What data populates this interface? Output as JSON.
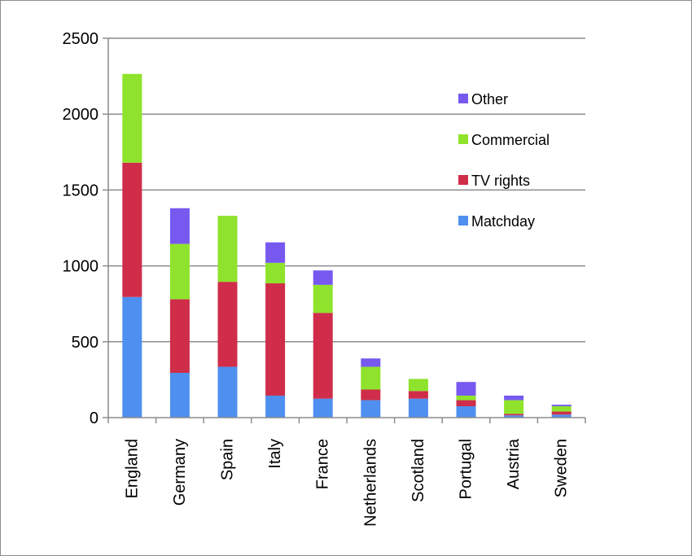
{
  "chart_data": {
    "type": "bar",
    "stacked": true,
    "title": "",
    "xlabel": "",
    "ylabel": "",
    "ylim": [
      0,
      2500
    ],
    "yticks": [
      0,
      500,
      1000,
      1500,
      2000,
      2500
    ],
    "grid": true,
    "legend_position": "right",
    "categories": [
      "England",
      "Germany",
      "Spain",
      "Italy",
      "France",
      "Netherlands",
      "Scotland",
      "Portugal",
      "Austria",
      "Sweden"
    ],
    "series": [
      {
        "name": "Matchday",
        "color": "#4F8FF0",
        "values": [
          795,
          295,
          335,
          145,
          125,
          115,
          125,
          75,
          15,
          20
        ]
      },
      {
        "name": "TV rights",
        "color": "#CF2D49",
        "values": [
          885,
          485,
          560,
          740,
          565,
          70,
          50,
          40,
          10,
          20
        ]
      },
      {
        "name": "Commercial",
        "color": "#8FE32C",
        "values": [
          585,
          365,
          435,
          135,
          185,
          150,
          80,
          30,
          90,
          35
        ]
      },
      {
        "name": "Other",
        "color": "#7759F0",
        "values": [
          0,
          235,
          0,
          135,
          95,
          55,
          0,
          90,
          30,
          10
        ]
      }
    ]
  }
}
